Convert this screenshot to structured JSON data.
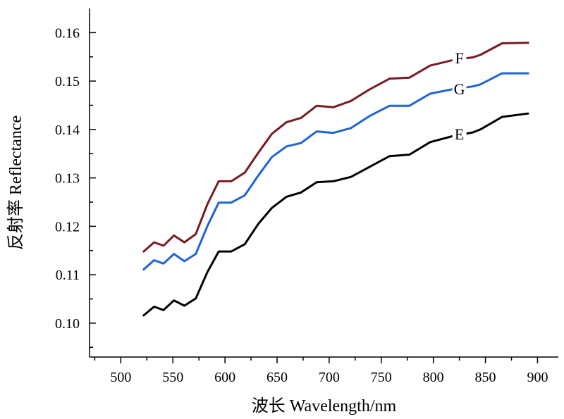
{
  "chart_data": {
    "type": "line",
    "title": "",
    "xlabel": "波长 Wavelength/nm",
    "ylabel": "反射率 Reflectance",
    "xlim": [
      470,
      920
    ],
    "ylim": [
      0.093,
      0.165
    ],
    "x_ticks": [
      500,
      550,
      600,
      650,
      700,
      750,
      800,
      850,
      900
    ],
    "x_tick_labels": [
      "500",
      "550",
      "600",
      "650",
      "700",
      "750",
      "800",
      "850",
      "900"
    ],
    "y_ticks": [
      0.1,
      0.11,
      0.12,
      0.13,
      0.14,
      0.15,
      0.16
    ],
    "y_tick_labels": [
      "0.10",
      "0.11",
      "0.12",
      "0.13",
      "0.14",
      "0.15",
      "0.16"
    ],
    "grid": false,
    "legend": "inline labels at right end of lines",
    "series": [
      {
        "name": "F",
        "color": "#7a1a22",
        "label_at": [
          825,
          0.1548
        ],
        "x": [
          522,
          532,
          541,
          551,
          561,
          572,
          583,
          594,
          606,
          619,
          632,
          645,
          659,
          673,
          688,
          704,
          721,
          739,
          758,
          777,
          797,
          818,
          838,
          845,
          866,
          891
        ],
        "y": [
          0.1148,
          0.1167,
          0.116,
          0.1181,
          0.1167,
          0.1184,
          0.1245,
          0.1293,
          0.1293,
          0.1311,
          0.1352,
          0.1391,
          0.1415,
          0.1424,
          0.1449,
          0.1446,
          0.1459,
          0.1483,
          0.1505,
          0.1507,
          0.1532,
          0.1543,
          0.1549,
          0.1554,
          0.1578,
          0.1579
        ]
      },
      {
        "name": "G",
        "color": "#1f63d6",
        "label_at": [
          825,
          0.1484
        ],
        "x": [
          522,
          532,
          541,
          551,
          561,
          572,
          583,
          594,
          606,
          619,
          632,
          645,
          659,
          673,
          688,
          704,
          721,
          739,
          758,
          777,
          797,
          818,
          838,
          845,
          866,
          891
        ],
        "y": [
          0.1111,
          0.113,
          0.1123,
          0.1143,
          0.1128,
          0.1143,
          0.12,
          0.1249,
          0.1249,
          0.1264,
          0.1305,
          0.1343,
          0.1365,
          0.1372,
          0.1396,
          0.1393,
          0.1403,
          0.1428,
          0.1449,
          0.1449,
          0.1474,
          0.1483,
          0.1489,
          0.1493,
          0.1516,
          0.1516
        ]
      },
      {
        "name": "E",
        "color": "#000000",
        "label_at": [
          825,
          0.1391
        ],
        "x": [
          522,
          532,
          541,
          551,
          561,
          572,
          583,
          594,
          606,
          619,
          632,
          645,
          659,
          673,
          688,
          704,
          721,
          739,
          758,
          777,
          797,
          818,
          838,
          845,
          866,
          891
        ],
        "y": [
          0.1016,
          0.1034,
          0.1027,
          0.1047,
          0.1036,
          0.1051,
          0.1105,
          0.1148,
          0.1148,
          0.1163,
          0.1205,
          0.1238,
          0.1261,
          0.127,
          0.1291,
          0.1293,
          0.1302,
          0.1323,
          0.1345,
          0.1348,
          0.1374,
          0.1386,
          0.1394,
          0.14,
          0.1426,
          0.1433
        ]
      }
    ]
  }
}
